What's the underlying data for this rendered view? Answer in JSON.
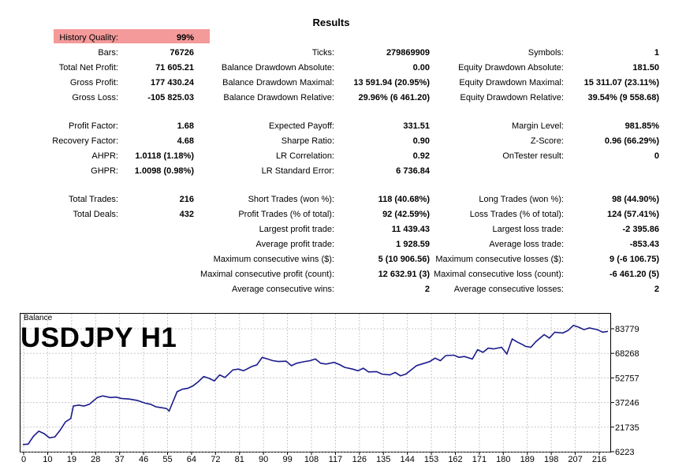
{
  "title": "Results",
  "history_quality": {
    "label": "History Quality:",
    "value": "99%"
  },
  "col1": [
    {
      "label": "Bars:",
      "value": "76726"
    },
    {
      "label": "Total Net Profit:",
      "value": "71 605.21"
    },
    {
      "label": "Gross Profit:",
      "value": "177 430.24"
    },
    {
      "label": "Gross Loss:",
      "value": "-105 825.03"
    },
    {
      "label": "Profit Factor:",
      "value": "1.68"
    },
    {
      "label": "Recovery Factor:",
      "value": "4.68"
    },
    {
      "label": "AHPR:",
      "value": "1.0118 (1.18%)"
    },
    {
      "label": "GHPR:",
      "value": "1.0098 (0.98%)"
    },
    {
      "label": "Total Trades:",
      "value": "216"
    },
    {
      "label": "Total Deals:",
      "value": "432"
    }
  ],
  "col2": [
    {
      "label": "Ticks:",
      "value": "279869909"
    },
    {
      "label": "Balance Drawdown Absolute:",
      "value": "0.00"
    },
    {
      "label": "Balance Drawdown Maximal:",
      "value": "13 591.94 (20.95%)"
    },
    {
      "label": "Balance Drawdown Relative:",
      "value": "29.96% (6 461.20)"
    },
    {
      "label": "Expected Payoff:",
      "value": "331.51"
    },
    {
      "label": "Sharpe Ratio:",
      "value": "0.90"
    },
    {
      "label": "LR Correlation:",
      "value": "0.92"
    },
    {
      "label": "LR Standard Error:",
      "value": "6 736.84"
    },
    {
      "label": "Short Trades (won %):",
      "value": "118 (40.68%)"
    },
    {
      "label": "Profit Trades (% of total):",
      "value": "92 (42.59%)"
    },
    {
      "label": "Largest profit trade:",
      "value": "11 439.43"
    },
    {
      "label": "Average profit trade:",
      "value": "1 928.59"
    },
    {
      "label": "Maximum consecutive wins ($):",
      "value": "5 (10 906.56)"
    },
    {
      "label": "Maximal consecutive profit (count):",
      "value": "12 632.91 (3)"
    },
    {
      "label": "Average consecutive wins:",
      "value": "2"
    }
  ],
  "col3": [
    {
      "label": "Symbols:",
      "value": "1"
    },
    {
      "label": "Equity Drawdown Absolute:",
      "value": "181.50"
    },
    {
      "label": "Equity Drawdown Maximal:",
      "value": "15 311.07 (23.11%)"
    },
    {
      "label": "Equity Drawdown Relative:",
      "value": "39.54% (9 558.68)"
    },
    {
      "label": "Margin Level:",
      "value": "981.85%"
    },
    {
      "label": "Z-Score:",
      "value": "0.96 (66.29%)"
    },
    {
      "label": "OnTester result:",
      "value": "0"
    },
    {
      "label": "Long Trades (won %):",
      "value": "98 (44.90%)"
    },
    {
      "label": "Loss Trades (% of total):",
      "value": "124 (57.41%)"
    },
    {
      "label": "Largest loss trade:",
      "value": "-2 395.86"
    },
    {
      "label": "Average loss trade:",
      "value": "-853.43"
    },
    {
      "label": "Maximum consecutive losses ($):",
      "value": "9 (-6 106.75)"
    },
    {
      "label": "Maximal consecutive loss (count):",
      "value": "-6 461.20 (5)"
    },
    {
      "label": "Average consecutive losses:",
      "value": "2"
    }
  ],
  "chart_name": "Balance",
  "symbol_label": "USDJPY H1",
  "colors": {
    "line": "#1a1a8c",
    "grid": "#c8c8c8",
    "highlight": "#f49a9a"
  },
  "chart_data": {
    "type": "line",
    "title": "",
    "xlabel": "",
    "ylabel": "",
    "x_ticks": [
      "0",
      "10",
      "19",
      "28",
      "37",
      "46",
      "55",
      "64",
      "72",
      "81",
      "90",
      "99",
      "108",
      "117",
      "126",
      "135",
      "144",
      "153",
      "162",
      "171",
      "180",
      "189",
      "198",
      "207",
      "216"
    ],
    "y_ticks": [
      "83779",
      "68268",
      "52757",
      "37246",
      "21735",
      "6223"
    ],
    "xlim": [
      0,
      220
    ],
    "ylim": [
      6223,
      83779
    ],
    "grid": true,
    "x": [
      0,
      2,
      4,
      6,
      8,
      10,
      12,
      14,
      16,
      18,
      19,
      21,
      23,
      25,
      28,
      30,
      33,
      35,
      37,
      40,
      43,
      46,
      48,
      50,
      52,
      54,
      55,
      58,
      60,
      62,
      64,
      66,
      68,
      70,
      72,
      74,
      76,
      79,
      81,
      83,
      86,
      88,
      90,
      92,
      94,
      96,
      99,
      101,
      103,
      106,
      108,
      110,
      112,
      114,
      117,
      119,
      121,
      124,
      126,
      128,
      130,
      133,
      135,
      138,
      140,
      142,
      144,
      146,
      148,
      150,
      153,
      155,
      157,
      159,
      162,
      164,
      166,
      169,
      171,
      173,
      175,
      177,
      180,
      182,
      184,
      186,
      188,
      189,
      191,
      193,
      196,
      198,
      200,
      203,
      205,
      207,
      209,
      211,
      213,
      216,
      218,
      220
    ],
    "y": [
      10500,
      10800,
      15500,
      18500,
      17000,
      14500,
      15000,
      19000,
      24000,
      26000,
      33500,
      34000,
      33500,
      34500,
      38500,
      39500,
      38500,
      38800,
      38000,
      37600,
      36800,
      35200,
      34500,
      33000,
      32500,
      32000,
      30500,
      42000,
      43500,
      44000,
      45500,
      48000,
      51000,
      50000,
      48500,
      52000,
      50500,
      55000,
      55500,
      54500,
      57000,
      58000,
      62500,
      61500,
      60500,
      60000,
      60200,
      57500,
      59000,
      60000,
      60500,
      61500,
      59000,
      58500,
      59500,
      58200,
      56500,
      55500,
      54500,
      56000,
      53800,
      54000,
      52500,
      52000,
      53500,
      51500,
      52500,
      55000,
      57500,
      58500,
      60000,
      62000,
      60500,
      63500,
      63800,
      62500,
      63000,
      61500,
      67000,
      65500,
      68000,
      67500,
      68500,
      64500,
      73500,
      71500,
      70000,
      69000,
      68500,
      72000,
      76000,
      74000,
      77500,
      77000,
      78500,
      81500,
      80500,
      79000,
      80000,
      79000,
      77500,
      78000
    ]
  }
}
